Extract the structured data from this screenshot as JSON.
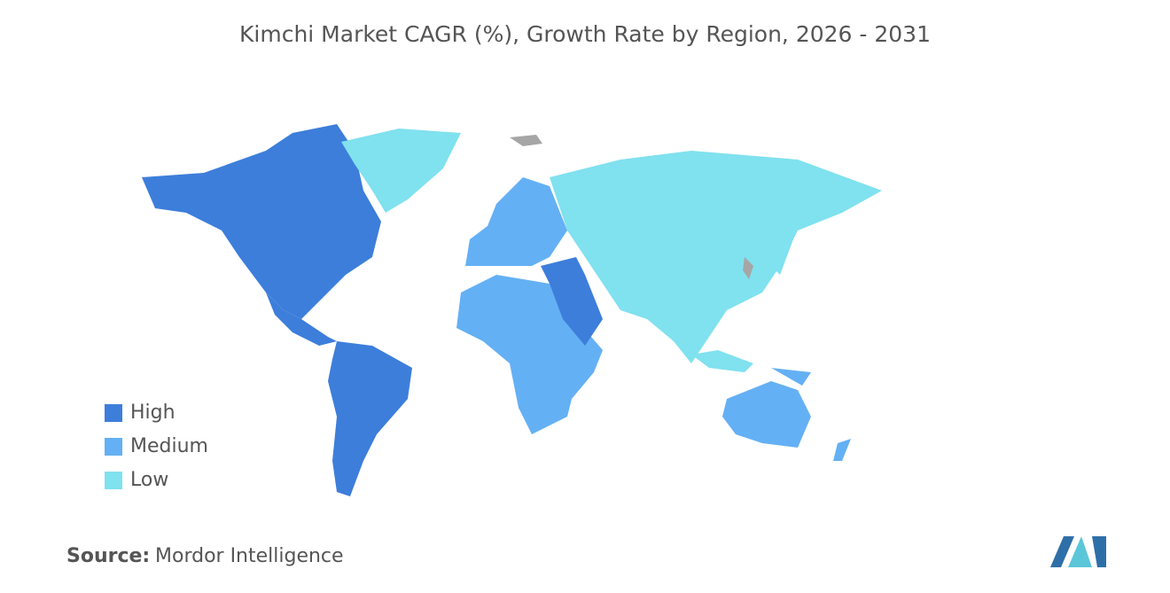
{
  "title": "Kimchi Market CAGR (%), Growth Rate by Region, 2026 - 2031",
  "legend": [
    {
      "label": "High",
      "color": "#3d7edb"
    },
    {
      "label": "Medium",
      "color": "#64b0f4"
    },
    {
      "label": "Low",
      "color": "#80e1ef"
    }
  ],
  "source": {
    "label": "Source:",
    "text": "Mordor Intelligence"
  }
}
